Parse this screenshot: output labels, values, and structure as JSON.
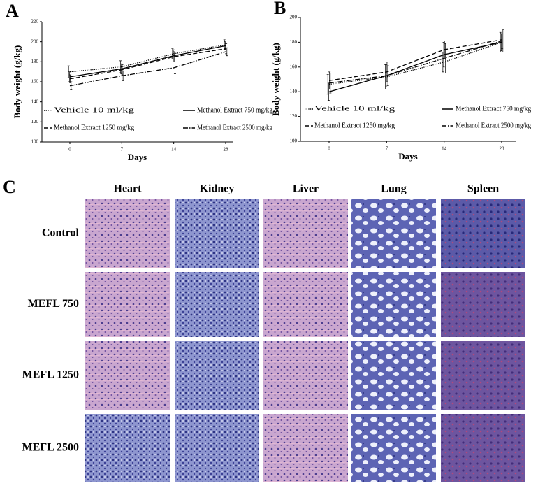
{
  "chart_data": [
    {
      "type": "line",
      "panel_label": "A",
      "x_label": "Days",
      "y_label": "Body weight (g/kg)",
      "categories": [
        "0",
        "7",
        "14",
        "28"
      ],
      "ylim": [
        100,
        220
      ],
      "yticks": [
        100,
        120,
        140,
        160,
        180,
        200,
        220
      ],
      "legend": "lower",
      "series": [
        {
          "name": "Vehicle 10 ml/kg",
          "color": "#000000",
          "line_style": "dotted",
          "values": [
            170,
            175,
            188,
            197
          ],
          "errors": [
            6,
            6,
            5,
            5
          ]
        },
        {
          "name": "Methanol Extract 750 mg/kg",
          "color": "#000000",
          "line_style": "solid",
          "values": [
            165,
            173,
            186,
            196
          ],
          "errors": [
            5,
            5,
            6,
            4
          ]
        },
        {
          "name": "Methanol Extract 1250 mg/kg",
          "color": "#000000",
          "line_style": "dashed",
          "values": [
            163,
            172,
            185,
            193
          ],
          "errors": [
            4,
            5,
            5,
            5
          ]
        },
        {
          "name": "Methanol Extract 2500 mg/kg",
          "color": "#000000",
          "line_style": "dashdot",
          "values": [
            156,
            166,
            174,
            190
          ],
          "errors": [
            4,
            5,
            6,
            4
          ]
        }
      ]
    },
    {
      "type": "line",
      "panel_label": "B",
      "x_label": "Days",
      "y_label": "Body weight (g/kg)",
      "categories": [
        "0",
        "7",
        "14",
        "28"
      ],
      "ylim": [
        100,
        200
      ],
      "yticks": [
        100,
        120,
        140,
        160,
        180,
        200
      ],
      "legend": "lower",
      "series": [
        {
          "name": "Vehicle 10 ml/kg",
          "color": "#000000",
          "line_style": "dotted",
          "values": [
            146,
            152,
            164,
            180
          ],
          "errors": [
            8,
            10,
            8,
            8
          ]
        },
        {
          "name": "Methanol Extract 750 mg/kg",
          "color": "#000000",
          "line_style": "solid",
          "values": [
            140,
            153,
            170,
            180
          ],
          "errors": [
            7,
            9,
            10,
            7
          ]
        },
        {
          "name": "Methanol Extract 1250 mg/kg",
          "color": "#000000",
          "line_style": "dashed",
          "values": [
            149,
            156,
            174,
            182
          ],
          "errors": [
            7,
            8,
            7,
            7
          ]
        },
        {
          "name": "Methanol Extract 2500 mg/kg",
          "color": "#000000",
          "line_style": "dashdot",
          "values": [
            147,
            153,
            167,
            181
          ],
          "errors": [
            8,
            8,
            12,
            9
          ]
        }
      ]
    }
  ],
  "histology": {
    "panel_label": "C",
    "columns": [
      "Heart",
      "Kidney",
      "Liver",
      "Lung",
      "Spleen"
    ],
    "rows": [
      "Control",
      "MEFL 750",
      "MEFL 1250",
      "MEFL 2500"
    ]
  }
}
